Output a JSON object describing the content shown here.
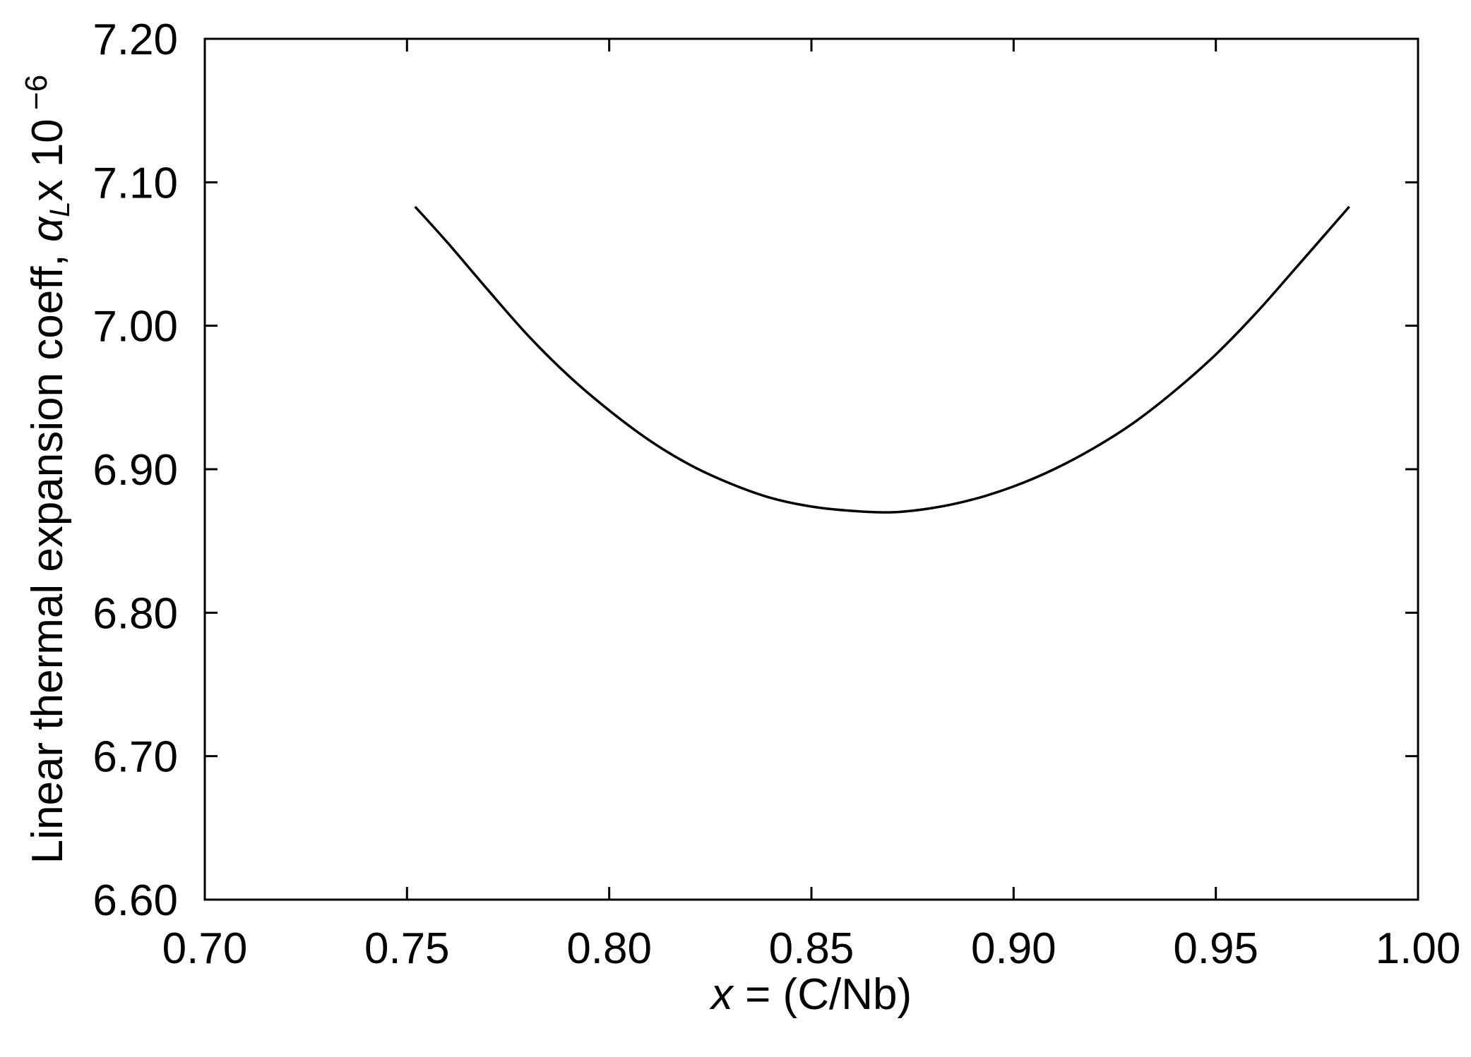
{
  "chart_data": {
    "type": "line",
    "title": "",
    "xlabel": {
      "var": "x",
      "rest": " = (C/Nb)"
    },
    "ylabel": {
      "main": "Linear thermal expansion coeff, ",
      "symbol": "α",
      "subscript": "L",
      "times": "x  10",
      "exponent": " −6"
    },
    "xlim": [
      0.7,
      1.0
    ],
    "ylim": [
      6.6,
      7.2
    ],
    "xticks": [
      "0.70",
      "0.75",
      "0.80",
      "0.85",
      "0.90",
      "0.95",
      "1.00"
    ],
    "yticks": [
      "6.60",
      "6.70",
      "6.80",
      "6.90",
      "7.00",
      "7.10",
      "7.20"
    ],
    "grid": false,
    "line_color": "#000000",
    "series": [
      {
        "x": [
          0.752,
          0.76,
          0.77,
          0.78,
          0.79,
          0.8,
          0.81,
          0.82,
          0.83,
          0.84,
          0.85,
          0.86,
          0.87,
          0.88,
          0.89,
          0.9,
          0.91,
          0.92,
          0.93,
          0.94,
          0.95,
          0.96,
          0.97,
          0.983
        ],
        "y": [
          7.083,
          7.058,
          7.025,
          6.993,
          6.965,
          6.941,
          6.92,
          6.903,
          6.89,
          6.88,
          6.874,
          6.871,
          6.87,
          6.873,
          6.879,
          6.888,
          6.9,
          6.915,
          6.933,
          6.955,
          6.98,
          7.009,
          7.041,
          7.083
        ]
      }
    ]
  }
}
